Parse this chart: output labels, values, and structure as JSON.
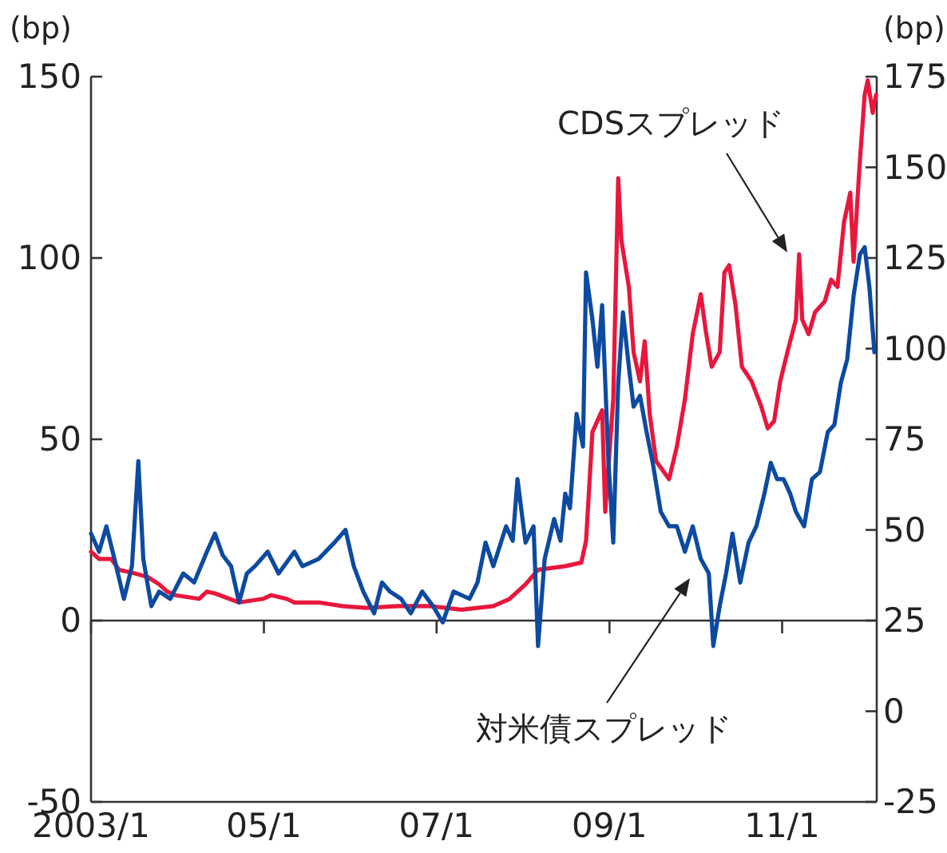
{
  "chart_data": {
    "type": "line",
    "ylabel": "(bp)",
    "y2label": "(bp)",
    "xlim": [
      "2003-01-01",
      "2012-02-05"
    ],
    "xticks": [
      {
        "value": "2003-01-01",
        "label": "2003/1"
      },
      {
        "value": "2005-01-01",
        "label": "05/1"
      },
      {
        "value": "2007-01-01",
        "label": "07/1"
      },
      {
        "value": "2009-01-01",
        "label": "09/1"
      },
      {
        "value": "2011-01-01",
        "label": "11/1"
      }
    ],
    "ylim": [
      -50,
      150
    ],
    "yticks": [
      -50,
      0,
      50,
      100,
      150
    ],
    "y2lim": [
      -25,
      175
    ],
    "y2ticks": [
      -25,
      0,
      25,
      50,
      75,
      100,
      125,
      150,
      175
    ],
    "ref_lines": [
      {
        "axis": "y",
        "value": 0
      }
    ],
    "line_style": "solid",
    "marker": "none",
    "series": [
      {
        "name": "CDSスプレッド",
        "color": "#e8173c",
        "x": [
          "2003-01-01",
          "2003-02-04",
          "2003-03-27",
          "2003-04-30",
          "2003-07-06",
          "2003-08-29",
          "2003-10-16",
          "2003-11-19",
          "2003-12-23",
          "2004-04-02",
          "2004-05-05",
          "2004-06-08",
          "2004-09-18",
          "2004-12-28",
          "2005-02-01",
          "2005-04-07",
          "2005-05-10",
          "2005-08-20",
          "2005-11-29",
          "2006-03-09",
          "2006-07-21",
          "2006-12-04",
          "2007-04-17",
          "2007-08-29",
          "2007-11-06",
          "2008-01-12",
          "2008-03-05",
          "2008-06-28",
          "2008-09-04",
          "2008-09-24",
          "2008-10-21",
          "2008-12-01",
          "2008-12-14",
          "2009-01-17",
          "2009-02-07",
          "2009-02-20",
          "2009-03-24",
          "2009-04-13",
          "2009-05-10",
          "2009-05-30",
          "2009-06-20",
          "2009-07-17",
          "2009-09-10",
          "2009-10-13",
          "2009-11-16",
          "2009-12-19",
          "2010-01-22",
          "2010-02-12",
          "2010-03-09",
          "2010-04-12",
          "2010-05-02",
          "2010-05-22",
          "2010-06-18",
          "2010-07-15",
          "2010-08-25",
          "2010-10-05",
          "2010-11-01",
          "2010-11-28",
          "2010-12-24",
          "2011-01-27",
          "2011-02-28",
          "2011-03-14",
          "2011-03-27",
          "2011-04-23",
          "2011-05-20",
          "2011-06-30",
          "2011-07-27",
          "2011-08-23",
          "2011-09-20",
          "2011-10-16",
          "2011-10-30",
          "2011-11-26",
          "2011-12-16",
          "2011-12-29",
          "2012-01-19",
          "2012-02-02"
        ],
        "values": [
          19,
          17,
          17,
          14,
          13,
          12,
          10,
          8,
          7,
          6,
          8,
          7.5,
          5,
          6,
          7,
          6,
          5,
          5,
          4,
          3.5,
          4,
          4,
          3,
          4,
          6,
          10,
          14,
          15,
          16,
          22,
          52,
          58,
          30,
          61,
          122,
          105,
          92,
          74,
          66,
          77,
          57,
          44,
          39,
          48,
          61,
          79,
          90,
          80,
          70,
          74,
          96,
          98,
          87,
          70,
          66,
          59,
          53,
          55,
          66,
          75,
          83,
          101,
          83,
          79,
          85,
          88,
          94,
          92,
          110,
          118,
          99,
          127,
          145,
          149,
          140,
          145
        ]
      },
      {
        "name": "対米債スプレッド",
        "color": "#0d4aa0",
        "axis": "y2",
        "x": [
          "2003-01-01",
          "2003-02-04",
          "2003-03-07",
          "2003-04-10",
          "2003-05-20",
          "2003-06-23",
          "2003-07-20",
          "2003-08-10",
          "2003-09-13",
          "2003-10-16",
          "2003-12-02",
          "2004-01-26",
          "2004-03-12",
          "2004-05-05",
          "2004-06-08",
          "2004-07-11",
          "2004-08-15",
          "2004-09-18",
          "2004-10-21",
          "2004-11-24",
          "2005-01-17",
          "2005-03-04",
          "2005-05-10",
          "2005-06-13",
          "2005-08-20",
          "2005-10-26",
          "2005-12-12",
          "2006-01-16",
          "2006-02-25",
          "2006-04-12",
          "2006-05-15",
          "2006-06-18",
          "2006-08-04",
          "2006-09-14",
          "2006-11-01",
          "2006-12-17",
          "2007-01-27",
          "2007-03-14",
          "2007-05-20",
          "2007-06-23",
          "2007-07-27",
          "2007-08-29",
          "2007-10-22",
          "2007-11-19",
          "2007-12-09",
          "2008-01-12",
          "2008-02-15",
          "2008-03-05",
          "2008-04-02",
          "2008-05-12",
          "2008-06-08",
          "2008-06-28",
          "2008-07-18",
          "2008-08-15",
          "2008-09-11",
          "2008-09-24",
          "2008-10-21",
          "2008-11-11",
          "2008-12-01",
          "2008-12-28",
          "2009-01-17",
          "2009-02-07",
          "2009-02-27",
          "2009-03-24",
          "2009-04-13",
          "2009-05-10",
          "2009-06-07",
          "2009-07-03",
          "2009-08-06",
          "2009-09-10",
          "2009-10-13",
          "2009-11-16",
          "2009-12-19",
          "2010-01-22",
          "2010-02-25",
          "2010-03-16",
          "2010-04-12",
          "2010-05-09",
          "2010-06-05",
          "2010-07-08",
          "2010-08-12",
          "2010-09-14",
          "2010-10-18",
          "2010-11-14",
          "2010-12-11",
          "2011-01-07",
          "2011-02-04",
          "2011-02-28",
          "2011-04-04",
          "2011-05-07",
          "2011-06-10",
          "2011-07-13",
          "2011-08-10",
          "2011-09-06",
          "2011-10-03",
          "2011-10-30",
          "2011-11-26",
          "2011-12-16",
          "2012-01-05",
          "2012-01-26"
        ],
        "values": [
          49,
          44,
          51,
          42,
          31,
          40,
          69,
          42,
          29,
          33,
          31,
          38,
          35.5,
          44,
          49,
          43,
          40,
          30,
          38,
          40,
          44,
          38,
          44,
          40,
          42,
          46.5,
          50,
          40,
          33,
          27,
          35.5,
          33,
          31,
          27,
          33,
          29,
          24.5,
          33,
          31,
          35.5,
          46.5,
          40,
          51,
          47,
          64,
          46.5,
          51,
          18,
          42,
          53,
          47,
          60,
          56,
          82,
          73,
          121,
          108,
          95,
          112,
          68.5,
          46.5,
          90.5,
          110,
          95,
          84,
          87,
          77,
          68.5,
          55,
          51,
          51,
          44,
          51,
          42,
          38,
          18,
          29,
          38,
          49,
          35.5,
          46.5,
          51,
          60,
          68.5,
          64,
          64,
          60,
          55,
          51,
          64,
          66,
          77,
          79,
          90.5,
          97,
          114.5,
          126,
          128,
          117,
          99
        ]
      }
    ]
  }
}
